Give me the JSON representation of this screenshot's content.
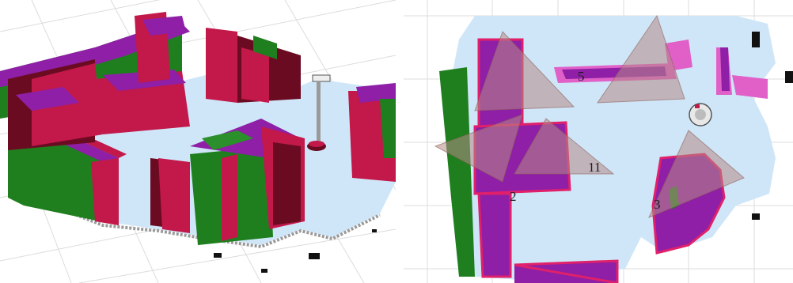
{
  "figure": {
    "left_view": "3d-voxel-map",
    "right_view": "top-down-map"
  },
  "colors": {
    "floor": "#cfe6f8",
    "wall_red": "#c2184a",
    "wall_dark": "#6b0b22",
    "voxel_purple": "#8e1fa6",
    "voxel_green": "#1f7f1f",
    "highlight_pink": "#f07ad8",
    "viewpoint_cone": "#b48a86",
    "grid_line": "#d9d9d9"
  },
  "region_labels": [
    {
      "id": "region-5",
      "text": "5"
    },
    {
      "id": "region-11",
      "text": "11"
    },
    {
      "id": "region-2",
      "text": "2"
    },
    {
      "id": "region-3",
      "text": "3"
    }
  ]
}
